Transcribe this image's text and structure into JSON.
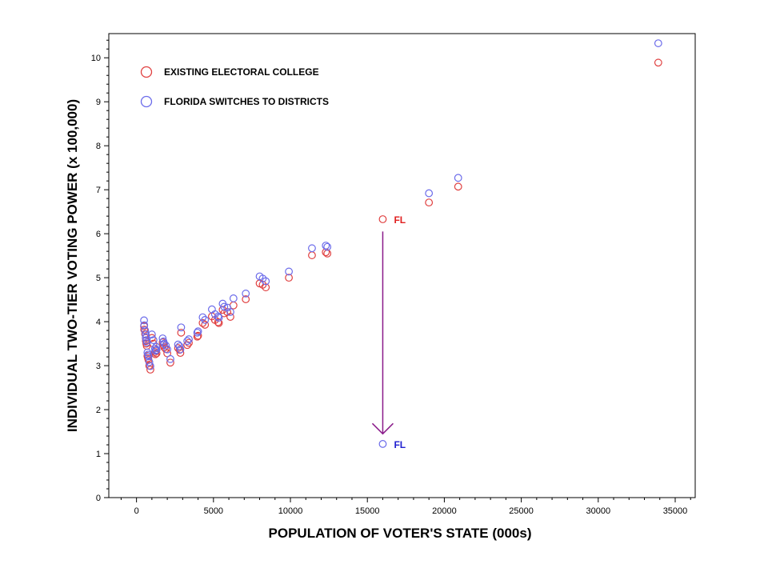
{
  "chart_data": {
    "type": "scatter",
    "title": "",
    "xlabel": "POPULATION OF VOTER'S STATE (000s)",
    "ylabel": "INDIVIDUAL TWO-TIER VOTING POWER (x 100,000)",
    "xlim": [
      -1800,
      36300
    ],
    "ylim": [
      0,
      10.55
    ],
    "xticks": [
      0,
      5000,
      10000,
      15000,
      20000,
      25000,
      30000,
      35000
    ],
    "yticks": [
      0,
      1,
      2,
      3,
      4,
      5,
      6,
      7,
      8,
      9,
      10
    ],
    "grid": false,
    "legend_position": "top-left",
    "series": [
      {
        "name": "EXISTING ELECTORAL COLLEGE",
        "color": "#e04040",
        "points": [
          [
            490,
            3.9
          ],
          [
            500,
            3.82
          ],
          [
            560,
            3.72
          ],
          [
            600,
            3.63
          ],
          [
            610,
            3.56
          ],
          [
            640,
            3.5
          ],
          [
            670,
            3.45
          ],
          [
            710,
            3.22
          ],
          [
            750,
            3.17
          ],
          [
            780,
            3.13
          ],
          [
            830,
            3.0
          ],
          [
            900,
            2.91
          ],
          [
            1000,
            3.63
          ],
          [
            1100,
            3.5
          ],
          [
            1200,
            3.31
          ],
          [
            1230,
            3.26
          ],
          [
            1280,
            3.35
          ],
          [
            1300,
            3.28
          ],
          [
            1700,
            3.53
          ],
          [
            1750,
            3.47
          ],
          [
            1800,
            3.42
          ],
          [
            1900,
            3.38
          ],
          [
            2000,
            3.28
          ],
          [
            2200,
            3.07
          ],
          [
            2700,
            3.4
          ],
          [
            2800,
            3.36
          ],
          [
            2850,
            3.29
          ],
          [
            2900,
            3.75
          ],
          [
            3300,
            3.47
          ],
          [
            3400,
            3.52
          ],
          [
            3950,
            3.66
          ],
          [
            4000,
            3.68
          ],
          [
            4300,
            3.97
          ],
          [
            4450,
            3.93
          ],
          [
            4900,
            4.12
          ],
          [
            5100,
            4.04
          ],
          [
            5300,
            3.99
          ],
          [
            5350,
            3.97
          ],
          [
            5600,
            4.27
          ],
          [
            5700,
            4.19
          ],
          [
            5900,
            4.22
          ],
          [
            6100,
            4.11
          ],
          [
            6300,
            4.37
          ],
          [
            7100,
            4.51
          ],
          [
            8000,
            4.87
          ],
          [
            8200,
            4.84
          ],
          [
            8400,
            4.78
          ],
          [
            9900,
            5.0
          ],
          [
            11400,
            5.51
          ],
          [
            12300,
            5.58
          ],
          [
            12400,
            5.55
          ],
          [
            16000,
            6.33
          ],
          [
            19000,
            6.71
          ],
          [
            20900,
            7.07
          ],
          [
            33900,
            9.89
          ]
        ]
      },
      {
        "name": "FLORIDA SWITCHES TO DISTRICTS",
        "color": "#6b6bea",
        "points": [
          [
            490,
            4.03
          ],
          [
            500,
            3.92
          ],
          [
            560,
            3.8
          ],
          [
            600,
            3.71
          ],
          [
            610,
            3.64
          ],
          [
            640,
            3.58
          ],
          [
            670,
            3.53
          ],
          [
            710,
            3.3
          ],
          [
            750,
            3.25
          ],
          [
            780,
            3.21
          ],
          [
            830,
            3.08
          ],
          [
            900,
            2.99
          ],
          [
            1000,
            3.71
          ],
          [
            1100,
            3.58
          ],
          [
            1200,
            3.39
          ],
          [
            1230,
            3.34
          ],
          [
            1280,
            3.43
          ],
          [
            1300,
            3.36
          ],
          [
            1700,
            3.62
          ],
          [
            1750,
            3.55
          ],
          [
            1800,
            3.5
          ],
          [
            1900,
            3.46
          ],
          [
            2000,
            3.37
          ],
          [
            2200,
            3.15
          ],
          [
            2700,
            3.48
          ],
          [
            2800,
            3.44
          ],
          [
            2850,
            3.37
          ],
          [
            2900,
            3.87
          ],
          [
            3300,
            3.56
          ],
          [
            3400,
            3.6
          ],
          [
            3950,
            3.75
          ],
          [
            4000,
            3.78
          ],
          [
            4300,
            4.1
          ],
          [
            4450,
            4.04
          ],
          [
            4900,
            4.28
          ],
          [
            5100,
            4.17
          ],
          [
            5300,
            4.12
          ],
          [
            5350,
            4.09
          ],
          [
            5600,
            4.41
          ],
          [
            5700,
            4.34
          ],
          [
            5900,
            4.32
          ],
          [
            6100,
            4.22
          ],
          [
            6300,
            4.53
          ],
          [
            7100,
            4.64
          ],
          [
            8000,
            5.03
          ],
          [
            8200,
            4.98
          ],
          [
            8400,
            4.92
          ],
          [
            9900,
            5.14
          ],
          [
            11400,
            5.67
          ],
          [
            12300,
            5.73
          ],
          [
            12400,
            5.7
          ],
          [
            16000,
            1.22
          ],
          [
            19000,
            6.92
          ],
          [
            20900,
            7.27
          ],
          [
            33900,
            10.33
          ]
        ]
      }
    ],
    "annotations": [
      {
        "text": "FL",
        "x": 16000,
        "y": 6.33,
        "color": "#e02020"
      },
      {
        "text": "FL",
        "x": 16000,
        "y": 1.22,
        "color": "#2020d0"
      }
    ],
    "arrow": {
      "from": [
        16000,
        6.05
      ],
      "to": [
        16000,
        1.45
      ],
      "color": "#8a1a8a"
    }
  }
}
